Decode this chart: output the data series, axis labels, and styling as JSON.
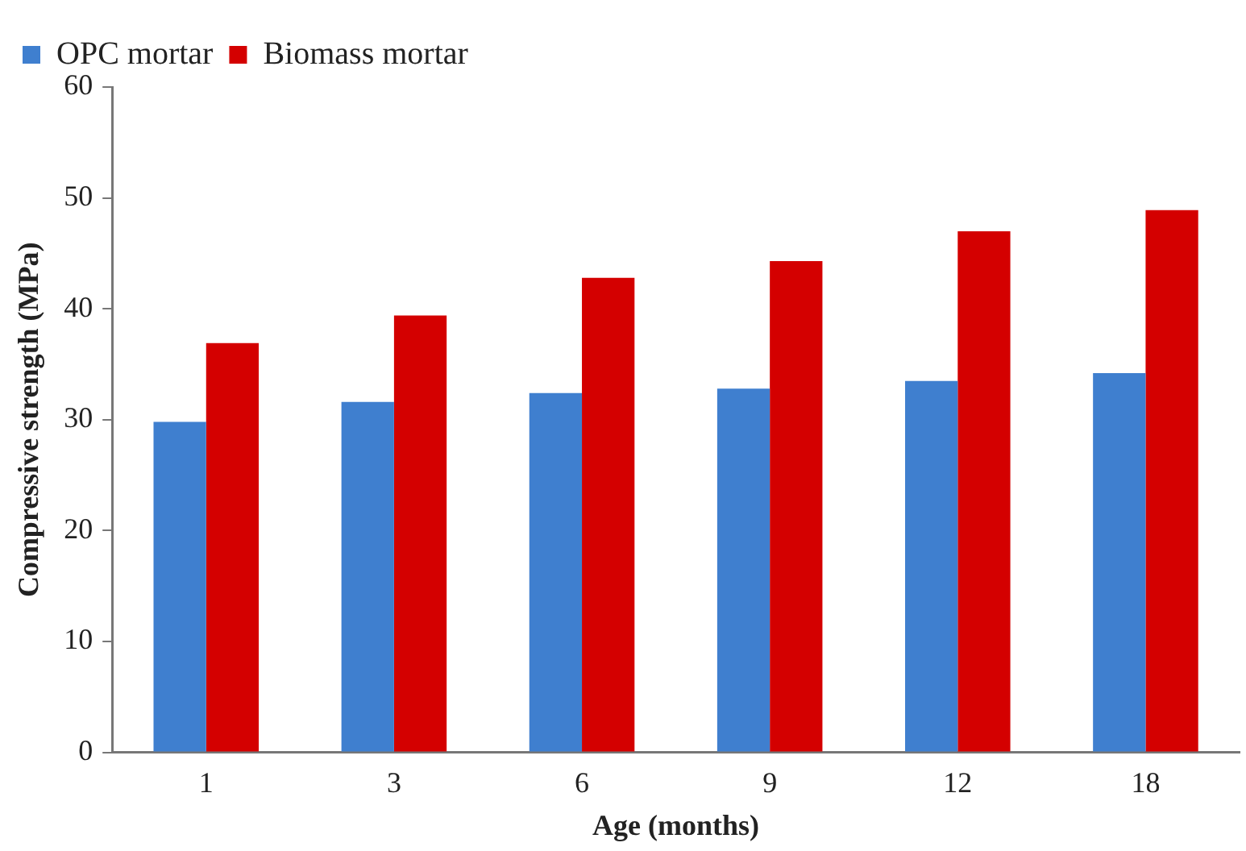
{
  "chart_data": {
    "type": "bar",
    "xlabel": "Age (months)",
    "ylabel": "Compressive strength (MPa)",
    "categories": [
      "1",
      "3",
      "6",
      "9",
      "12",
      "18"
    ],
    "series": [
      {
        "name": "OPC mortar",
        "color": "#3f7fcf",
        "values": [
          29.8,
          31.6,
          32.4,
          32.8,
          33.5,
          34.2
        ]
      },
      {
        "name": "Biomass mortar",
        "color": "#d40000",
        "values": [
          36.9,
          39.4,
          42.8,
          44.3,
          47.0,
          48.9
        ]
      }
    ],
    "ylim": [
      0,
      60
    ],
    "yticks": [
      0,
      10,
      20,
      30,
      40,
      50,
      60
    ],
    "grid": false,
    "legend": "top left"
  }
}
